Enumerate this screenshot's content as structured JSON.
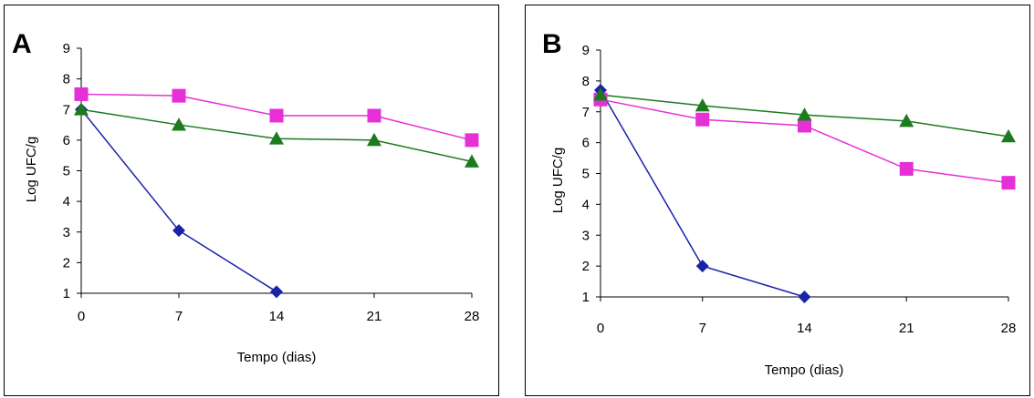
{
  "chart_data": [
    {
      "type": "line",
      "title": "A",
      "xlabel": "Tempo (dias)",
      "ylabel": "Log UFC/g",
      "x": [
        0,
        7,
        14,
        21,
        28
      ],
      "x_tick_labels": [
        "0",
        "7",
        "14",
        "21",
        "28"
      ],
      "y_tick_labels": [
        "1",
        "2",
        "3",
        "4",
        "5",
        "6",
        "7",
        "8",
        "9"
      ],
      "ylim": [
        1,
        9
      ],
      "xlim": [
        0,
        28
      ],
      "grid": false,
      "series": [
        {
          "marker": "diamond",
          "color": "#1a22a8",
          "values": [
            7.0,
            3.05,
            1.05,
            null,
            null
          ]
        },
        {
          "marker": "square",
          "color": "#e62fd6",
          "values": [
            7.5,
            7.45,
            6.8,
            6.8,
            6.0
          ]
        },
        {
          "marker": "triangle",
          "color": "#1e7a1e",
          "values": [
            7.0,
            6.5,
            6.05,
            6.0,
            5.3
          ]
        }
      ]
    },
    {
      "type": "line",
      "title": "B",
      "xlabel": "Tempo (dias)",
      "ylabel": "Log UFC/g",
      "x": [
        0,
        7,
        14,
        21,
        28
      ],
      "x_tick_labels": [
        "0",
        "7",
        "14",
        "21",
        "28"
      ],
      "y_tick_labels": [
        "1",
        "2",
        "3",
        "4",
        "5",
        "6",
        "7",
        "8",
        "9"
      ],
      "ylim": [
        1,
        9
      ],
      "xlim": [
        0,
        28
      ],
      "grid": false,
      "series": [
        {
          "marker": "diamond",
          "color": "#1a22a8",
          "values": [
            7.7,
            2.0,
            1.0,
            null,
            null
          ]
        },
        {
          "marker": "square",
          "color": "#e62fd6",
          "values": [
            7.4,
            6.75,
            6.55,
            5.15,
            4.7
          ]
        },
        {
          "marker": "triangle",
          "color": "#1e7a1e",
          "values": [
            7.55,
            7.2,
            6.9,
            6.7,
            6.2
          ]
        }
      ]
    }
  ]
}
